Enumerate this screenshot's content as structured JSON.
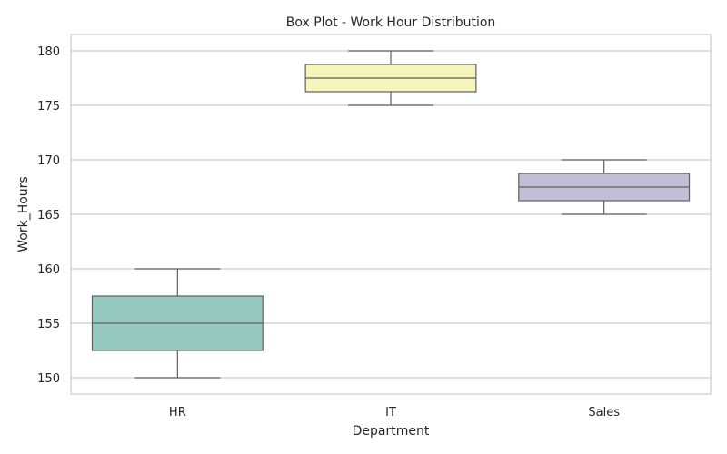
{
  "chart_data": {
    "type": "box",
    "title": "Box Plot - Work Hour Distribution",
    "xlabel": "Department",
    "ylabel": "Work_Hours",
    "ylim": [
      148.5,
      181.5
    ],
    "yticks": [
      150,
      155,
      160,
      165,
      170,
      175,
      180
    ],
    "grid": true,
    "categories": [
      "HR",
      "IT",
      "Sales"
    ],
    "boxes": [
      {
        "category": "HR",
        "min": 150,
        "q1": 152.5,
        "median": 155,
        "q3": 157.5,
        "max": 160,
        "color": "#96cac1"
      },
      {
        "category": "IT",
        "min": 175,
        "q1": 176.25,
        "median": 177.5,
        "q3": 178.75,
        "max": 180,
        "color": "#f6f6bc"
      },
      {
        "category": "Sales",
        "min": 165,
        "q1": 166.25,
        "median": 167.5,
        "q3": 168.75,
        "max": 170,
        "color": "#c1bed6"
      }
    ]
  }
}
